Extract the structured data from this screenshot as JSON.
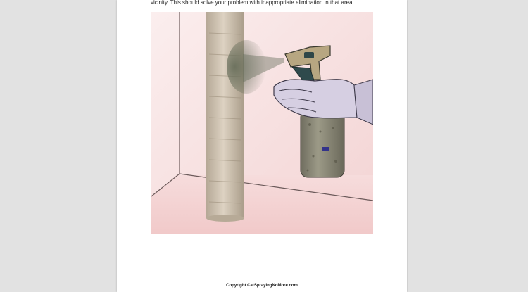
{
  "document": {
    "paragraph_fragment": "vicinity.  This should solve your problem with inappropriate elimination in that area.",
    "footer_copyright": "Copyright CatSprayingNoMore.com"
  },
  "illustration": {
    "subject": "hand spraying bottle at scratching post",
    "colors": {
      "wall": "#f7dede",
      "floor": "#f3cfcf",
      "post": "#cfc2b0",
      "nozzle": "#b8a782",
      "bottle": "#8c8a78",
      "hand": "#d5cfe0",
      "spray": "#6f7560"
    }
  }
}
